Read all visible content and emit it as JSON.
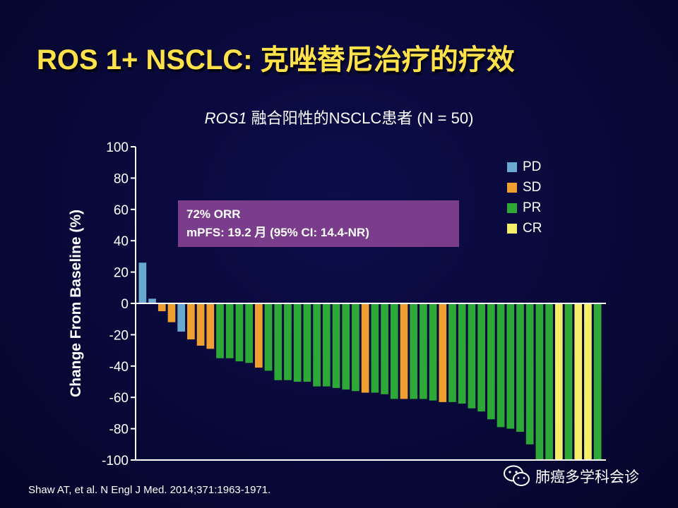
{
  "slide": {
    "title": "ROS 1+ NSCLC: 克唑替尼治疗的疗效",
    "subtitle_gene": "ROS1",
    "subtitle_rest": " 融合阳性的NSCLC患者 (N = 50)",
    "citation": "Shaw AT, et al. N Engl J Med. 2014;371:1963-1971.",
    "watermark": "肺癌多学科会诊"
  },
  "summary": {
    "line1": "72%  ORR",
    "line2": "mPFS: 19.2 月 (95%  CI: 14.4-NR)"
  },
  "colors": {
    "PD": "#6aa8d0",
    "SD": "#f0a030",
    "PR": "#2ea836",
    "CR": "#f4ee6a"
  },
  "chart_data": {
    "type": "bar",
    "title": "ROS1 融合阳性的NSCLC患者 (N = 50)",
    "ylabel": "Change From Baseline (%)",
    "xlabel": "",
    "ylim": [
      -100,
      100
    ],
    "yticks": [
      100,
      80,
      60,
      40,
      20,
      0,
      -20,
      -40,
      -60,
      -80,
      -100
    ],
    "legend": [
      "PD",
      "SD",
      "PR",
      "CR"
    ],
    "legend_position": "top-right",
    "bars": [
      {
        "value": 26,
        "response": "PD"
      },
      {
        "value": 3,
        "response": "PD"
      },
      {
        "value": -5,
        "response": "SD"
      },
      {
        "value": -12,
        "response": "SD"
      },
      {
        "value": -18,
        "response": "PD"
      },
      {
        "value": -23,
        "response": "SD"
      },
      {
        "value": -27,
        "response": "SD"
      },
      {
        "value": -29,
        "response": "SD"
      },
      {
        "value": -35,
        "response": "PR"
      },
      {
        "value": -35,
        "response": "PR"
      },
      {
        "value": -37,
        "response": "PR"
      },
      {
        "value": -38,
        "response": "PR"
      },
      {
        "value": -41,
        "response": "SD"
      },
      {
        "value": -43,
        "response": "PR"
      },
      {
        "value": -49,
        "response": "PR"
      },
      {
        "value": -49,
        "response": "PR"
      },
      {
        "value": -50,
        "response": "PR"
      },
      {
        "value": -50,
        "response": "PR"
      },
      {
        "value": -53,
        "response": "PR"
      },
      {
        "value": -53,
        "response": "PR"
      },
      {
        "value": -54,
        "response": "PR"
      },
      {
        "value": -55,
        "response": "PR"
      },
      {
        "value": -56,
        "response": "PR"
      },
      {
        "value": -57,
        "response": "SD"
      },
      {
        "value": -57,
        "response": "PR"
      },
      {
        "value": -58,
        "response": "PR"
      },
      {
        "value": -61,
        "response": "PR"
      },
      {
        "value": -61,
        "response": "SD"
      },
      {
        "value": -61,
        "response": "PR"
      },
      {
        "value": -61,
        "response": "PR"
      },
      {
        "value": -62,
        "response": "PR"
      },
      {
        "value": -63,
        "response": "SD"
      },
      {
        "value": -63,
        "response": "PR"
      },
      {
        "value": -64,
        "response": "PR"
      },
      {
        "value": -67,
        "response": "PR"
      },
      {
        "value": -69,
        "response": "PR"
      },
      {
        "value": -74,
        "response": "PR"
      },
      {
        "value": -79,
        "response": "PR"
      },
      {
        "value": -80,
        "response": "PR"
      },
      {
        "value": -82,
        "response": "PR"
      },
      {
        "value": -90,
        "response": "PR"
      },
      {
        "value": -100,
        "response": "PR"
      },
      {
        "value": -100,
        "response": "PR"
      },
      {
        "value": -100,
        "response": "CR"
      },
      {
        "value": -100,
        "response": "PR"
      },
      {
        "value": -100,
        "response": "CR"
      },
      {
        "value": -100,
        "response": "CR"
      },
      {
        "value": -100,
        "response": "PR"
      }
    ]
  }
}
